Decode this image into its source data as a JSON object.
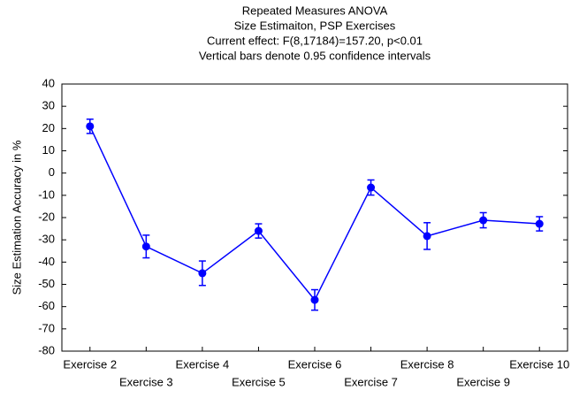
{
  "chart_data": {
    "type": "line",
    "title": [
      "Repeated Measures ANOVA",
      "Size Estimaiton, PSP Exercises",
      "Current effect: F(8,17184)=157.20, p<0.01",
      "Vertical bars denote 0.95 confidence intervals"
    ],
    "y_label": "Size Estimation Accuracy in %",
    "categories": [
      "Exercise 2",
      "Exercise 3",
      "Exercise 4",
      "Exercise 5",
      "Exercise 6",
      "Exercise 7",
      "Exercise 8",
      "Exercise 9",
      "Exercise 10"
    ],
    "series": [
      {
        "color": "#0000ff",
        "values": [
          21,
          -33,
          -45,
          -26,
          -57,
          -6.5,
          -28.3,
          -21.2,
          -22.8
        ],
        "errors": [
          3.2,
          5.1,
          5.5,
          3.2,
          4.6,
          3.4,
          6,
          3.4,
          3.2
        ]
      }
    ],
    "ylim": [
      -80,
      40
    ],
    "yticks": [
      -80,
      -70,
      -60,
      -50,
      -40,
      -30,
      -20,
      -10,
      0,
      10,
      20,
      30,
      40
    ]
  }
}
